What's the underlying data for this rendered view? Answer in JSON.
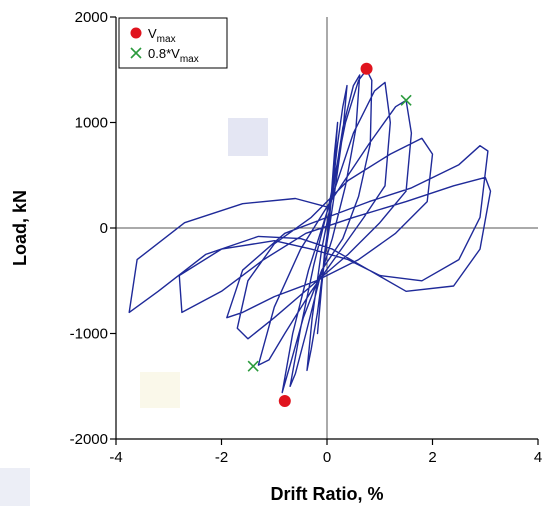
{
  "chart_data": {
    "type": "line",
    "xlabel": "Drift Ratio, %",
    "ylabel": "Load, kN",
    "xlim": [
      -4,
      4
    ],
    "ylim": [
      -2000,
      2000
    ],
    "xticks": [
      -4,
      -2,
      0,
      2,
      4
    ],
    "yticks": [
      2000,
      1000,
      0,
      -1000,
      -2000
    ],
    "xtick_labels": [
      "-4",
      "-2",
      "0",
      "2",
      "4"
    ],
    "ytick_labels": [
      "2000",
      "1000",
      "0",
      "-1000",
      "-2000"
    ],
    "reference_lines": {
      "x": 0,
      "y": 0
    },
    "grid": false,
    "legend_position": "top-left",
    "colors": {
      "hysteresis": "#1f2a99",
      "vmax": "#e0141e",
      "v08": "#2a9a3c",
      "axis": "#000000",
      "refline": "#555555"
    },
    "legend": {
      "vmax": {
        "base": "V",
        "sub": "max"
      },
      "v08": {
        "prefix": "0.8*V",
        "sub": "max"
      }
    },
    "series": [
      {
        "marker": "line",
        "points": [
          [
            0,
            0
          ],
          [
            0.08,
            300
          ],
          [
            0.14,
            700
          ],
          [
            0.2,
            1000
          ],
          [
            0.15,
            650
          ],
          [
            0.05,
            100
          ],
          [
            -0.05,
            -250
          ],
          [
            -0.12,
            -650
          ],
          [
            -0.18,
            -1000
          ],
          [
            -0.1,
            -550
          ],
          [
            0,
            -80
          ],
          [
            0.1,
            350
          ],
          [
            0.2,
            800
          ],
          [
            0.3,
            1150
          ],
          [
            0.38,
            1350
          ],
          [
            0.3,
            900
          ],
          [
            0.12,
            250
          ],
          [
            -0.05,
            -300
          ],
          [
            -0.18,
            -800
          ],
          [
            -0.3,
            -1150
          ],
          [
            -0.38,
            -1350
          ],
          [
            -0.28,
            -850
          ],
          [
            -0.1,
            -200
          ],
          [
            0.1,
            300
          ],
          [
            0.3,
            950
          ],
          [
            0.5,
            1350
          ],
          [
            0.62,
            1450
          ],
          [
            0.55,
            950
          ],
          [
            0.35,
            400
          ],
          [
            0.1,
            -100
          ],
          [
            -0.15,
            -500
          ],
          [
            -0.4,
            -1000
          ],
          [
            -0.6,
            -1380
          ],
          [
            -0.7,
            -1500
          ],
          [
            -0.5,
            -950
          ],
          [
            -0.25,
            -350
          ],
          [
            0.05,
            250
          ],
          [
            0.35,
            1000
          ],
          [
            0.6,
            1400
          ],
          [
            0.75,
            1500
          ],
          [
            0.85,
            1400
          ],
          [
            0.82,
            800
          ],
          [
            0.6,
            300
          ],
          [
            0.3,
            -100
          ],
          [
            -0.1,
            -400
          ],
          [
            -0.45,
            -850
          ],
          [
            -0.7,
            -1300
          ],
          [
            -0.85,
            -1560
          ],
          [
            -0.65,
            -1000
          ],
          [
            -0.35,
            -400
          ],
          [
            0,
            150
          ],
          [
            0.5,
            900
          ],
          [
            0.9,
            1300
          ],
          [
            1.1,
            1380
          ],
          [
            1.2,
            1000
          ],
          [
            1.1,
            400
          ],
          [
            0.7,
            100
          ],
          [
            0.2,
            -250
          ],
          [
            -0.3,
            -600
          ],
          [
            -0.8,
            -1000
          ],
          [
            -1.1,
            -1250
          ],
          [
            -1.3,
            -1300
          ],
          [
            -1.0,
            -750
          ],
          [
            -0.5,
            -200
          ],
          [
            0,
            200
          ],
          [
            0.8,
            800
          ],
          [
            1.3,
            1150
          ],
          [
            1.5,
            1210
          ],
          [
            1.6,
            900
          ],
          [
            1.5,
            350
          ],
          [
            1.0,
            50
          ],
          [
            0.4,
            -250
          ],
          [
            -0.3,
            -550
          ],
          [
            -1.0,
            -850
          ],
          [
            -1.5,
            -1050
          ],
          [
            -1.7,
            -950
          ],
          [
            -1.5,
            -500
          ],
          [
            -1.0,
            -150
          ],
          [
            -0.3,
            100
          ],
          [
            0.4,
            450
          ],
          [
            1.2,
            700
          ],
          [
            1.8,
            850
          ],
          [
            2.0,
            700
          ],
          [
            1.9,
            250
          ],
          [
            1.3,
            -50
          ],
          [
            0.6,
            -300
          ],
          [
            -0.2,
            -500
          ],
          [
            -1.0,
            -650
          ],
          [
            -1.6,
            -800
          ],
          [
            -1.9,
            -850
          ],
          [
            -1.6,
            -400
          ],
          [
            -0.8,
            -50
          ],
          [
            0,
            100
          ],
          [
            0.8,
            250
          ],
          [
            1.6,
            380
          ],
          [
            2.5,
            600
          ],
          [
            2.9,
            780
          ],
          [
            3.05,
            730
          ],
          [
            2.9,
            100
          ],
          [
            2.5,
            -300
          ],
          [
            1.8,
            -500
          ],
          [
            1.0,
            -450
          ],
          [
            0.4,
            -300
          ],
          [
            -0.3,
            -200
          ],
          [
            -1.0,
            -120
          ],
          [
            -2.0,
            -200
          ],
          [
            -2.8,
            -450
          ],
          [
            -2.75,
            -800
          ],
          [
            -2.0,
            -600
          ],
          [
            -1.2,
            -300
          ],
          [
            -0.4,
            -50
          ],
          [
            0.5,
            100
          ],
          [
            1.5,
            250
          ],
          [
            2.4,
            400
          ],
          [
            3.0,
            480
          ],
          [
            3.1,
            350
          ],
          [
            2.9,
            -200
          ],
          [
            2.4,
            -550
          ],
          [
            1.5,
            -600
          ],
          [
            0.8,
            -400
          ],
          [
            0.1,
            -200
          ],
          [
            -0.5,
            -100
          ],
          [
            -1.3,
            -80
          ],
          [
            -2.3,
            -250
          ],
          [
            -3.2,
            -600
          ],
          [
            -3.75,
            -800
          ],
          [
            -3.6,
            -300
          ],
          [
            -2.7,
            50
          ],
          [
            -1.6,
            230
          ],
          [
            -0.6,
            280
          ],
          [
            0,
            200
          ]
        ]
      },
      {
        "name": "vmax",
        "marker": "circle",
        "points": [
          [
            0.75,
            1510
          ],
          [
            -0.8,
            -1640
          ]
        ]
      },
      {
        "name": "v08",
        "marker": "x",
        "points": [
          [
            1.5,
            1210
          ],
          [
            -1.4,
            -1310
          ]
        ]
      }
    ]
  }
}
